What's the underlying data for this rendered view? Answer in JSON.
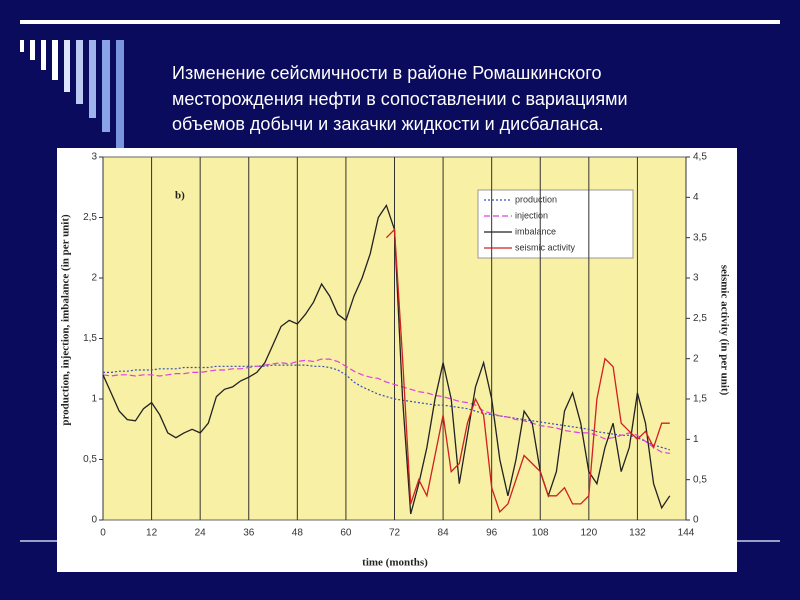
{
  "title_lines": [
    "Изменение сейсмичности в районе Ромашкинского",
    "месторождения нефти в сопоставлении с вариациями",
    "объемов добычи и закачки жидкости и дисбаланса."
  ],
  "chart_data": {
    "type": "line",
    "annotation": "b)",
    "x_label": "time (months)",
    "y_label": "production, injection, imbalance (in per unit)",
    "y2_label": "seismic activity (in per unit)",
    "xlim": [
      0,
      144
    ],
    "xticks": [
      0,
      12,
      24,
      36,
      48,
      60,
      72,
      84,
      96,
      108,
      120,
      132,
      144
    ],
    "ylim": [
      0,
      3
    ],
    "yticks": [
      0,
      {
        "value": 0.5,
        "label": "0,5"
      },
      1,
      {
        "value": 1.5,
        "label": "1,5"
      },
      2,
      {
        "value": 2.5,
        "label": "2,5"
      },
      3
    ],
    "y2lim": [
      0,
      4.5
    ],
    "y2ticks": [
      0,
      {
        "value": 0.5,
        "label": "0,5"
      },
      1,
      {
        "value": 1.5,
        "label": "1,5"
      },
      2,
      {
        "value": 2.5,
        "label": "2,5"
      },
      3,
      {
        "value": 3.5,
        "label": "3,5"
      },
      4,
      {
        "value": 4.5,
        "label": "4,5"
      }
    ],
    "x_grid": true,
    "legend": "upper right",
    "x": [
      0,
      2,
      4,
      6,
      8,
      10,
      12,
      14,
      16,
      18,
      20,
      22,
      24,
      26,
      28,
      30,
      32,
      34,
      36,
      38,
      40,
      42,
      44,
      46,
      48,
      50,
      52,
      54,
      56,
      58,
      60,
      62,
      64,
      66,
      68,
      70,
      72,
      74,
      76,
      78,
      80,
      82,
      84,
      86,
      88,
      90,
      92,
      94,
      96,
      98,
      100,
      102,
      104,
      106,
      108,
      110,
      112,
      114,
      116,
      118,
      120,
      122,
      124,
      126,
      128,
      130,
      132,
      134,
      136,
      138,
      140
    ],
    "series": [
      {
        "name": "production",
        "color": "#3a4fb8",
        "style": "dotted",
        "values": [
          1.22,
          1.22,
          1.23,
          1.23,
          1.24,
          1.24,
          1.24,
          1.25,
          1.25,
          1.25,
          1.26,
          1.26,
          1.26,
          1.26,
          1.27,
          1.27,
          1.27,
          1.27,
          1.27,
          1.27,
          1.27,
          1.28,
          1.28,
          1.28,
          1.28,
          1.28,
          1.27,
          1.27,
          1.26,
          1.24,
          1.2,
          1.14,
          1.1,
          1.07,
          1.04,
          1.02,
          1.0,
          0.99,
          0.98,
          0.97,
          0.96,
          0.95,
          0.95,
          0.94,
          0.93,
          0.92,
          0.9,
          0.88,
          0.87,
          0.86,
          0.85,
          0.84,
          0.83,
          0.82,
          0.81,
          0.8,
          0.79,
          0.78,
          0.77,
          0.76,
          0.75,
          0.73,
          0.72,
          0.71,
          0.7,
          0.7,
          0.68,
          0.65,
          0.62,
          0.6,
          0.58
        ]
      },
      {
        "name": "injection",
        "color": "#e040e0",
        "style": "dashed",
        "values": [
          1.2,
          1.19,
          1.2,
          1.2,
          1.19,
          1.2,
          1.2,
          1.19,
          1.2,
          1.21,
          1.21,
          1.22,
          1.22,
          1.23,
          1.24,
          1.24,
          1.25,
          1.25,
          1.26,
          1.27,
          1.28,
          1.29,
          1.3,
          1.29,
          1.31,
          1.32,
          1.31,
          1.33,
          1.33,
          1.31,
          1.27,
          1.23,
          1.2,
          1.18,
          1.17,
          1.14,
          1.12,
          1.1,
          1.08,
          1.06,
          1.05,
          1.03,
          1.02,
          1.0,
          0.98,
          0.97,
          0.95,
          0.9,
          0.88,
          0.86,
          0.85,
          0.83,
          0.82,
          0.8,
          0.78,
          0.77,
          0.76,
          0.74,
          0.73,
          0.72,
          0.72,
          0.7,
          0.67,
          0.68,
          0.7,
          0.72,
          0.7,
          0.65,
          0.6,
          0.56,
          0.55
        ]
      },
      {
        "name": "imbalance",
        "color": "#222222",
        "style": "solid",
        "values": [
          1.2,
          1.05,
          0.9,
          0.83,
          0.82,
          0.92,
          0.97,
          0.87,
          0.72,
          0.68,
          0.72,
          0.75,
          0.72,
          0.8,
          1.02,
          1.08,
          1.1,
          1.15,
          1.18,
          1.22,
          1.3,
          1.45,
          1.6,
          1.65,
          1.62,
          1.7,
          1.8,
          1.95,
          1.85,
          1.7,
          1.65,
          1.85,
          2.0,
          2.2,
          2.5,
          2.6,
          2.4,
          1.0,
          0.05,
          0.3,
          0.6,
          1.0,
          1.3,
          1.0,
          0.3,
          0.7,
          1.1,
          1.3,
          1.0,
          0.5,
          0.2,
          0.5,
          0.9,
          0.8,
          0.4,
          0.2,
          0.4,
          0.9,
          1.05,
          0.8,
          0.4,
          0.3,
          0.6,
          0.8,
          0.4,
          0.6,
          1.05,
          0.8,
          0.3,
          0.1,
          0.2
        ]
      },
      {
        "name": "seismic activity",
        "color": "#d02020",
        "style": "solid",
        "axis": "y2",
        "values": [
          null,
          null,
          null,
          null,
          null,
          null,
          null,
          null,
          null,
          null,
          null,
          null,
          null,
          null,
          null,
          null,
          null,
          null,
          null,
          null,
          null,
          null,
          null,
          null,
          null,
          null,
          null,
          null,
          null,
          null,
          null,
          null,
          null,
          null,
          null,
          3.5,
          3.6,
          2.0,
          0.2,
          0.5,
          0.3,
          0.8,
          1.3,
          0.6,
          0.7,
          1.2,
          1.5,
          1.3,
          0.4,
          0.1,
          0.2,
          0.5,
          0.8,
          0.7,
          0.6,
          0.3,
          0.3,
          0.4,
          0.2,
          0.2,
          0.3,
          1.5,
          2.0,
          1.9,
          1.2,
          1.1,
          1.0,
          1.1,
          0.9,
          1.2,
          1.2
        ]
      }
    ]
  }
}
